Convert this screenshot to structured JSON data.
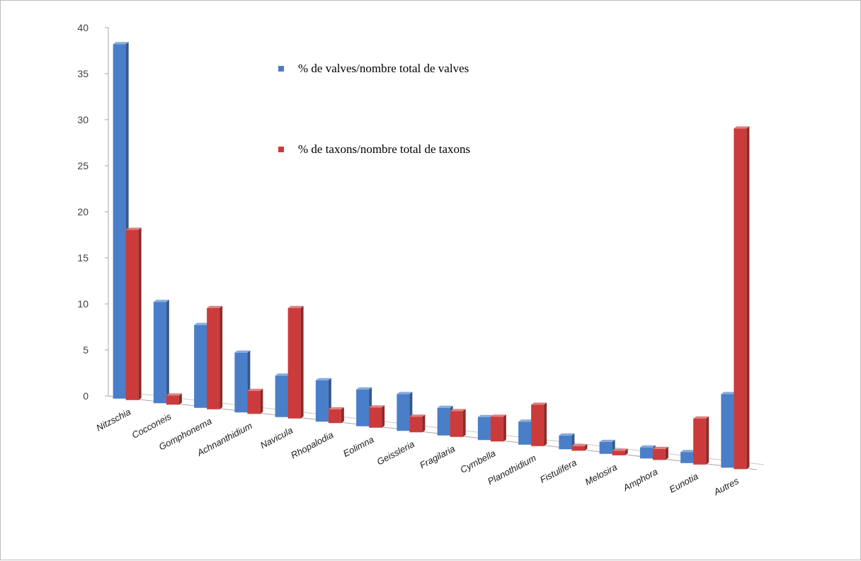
{
  "chart_data": {
    "type": "bar",
    "title": "",
    "xlabel": "",
    "ylabel": "",
    "ylim": [
      0,
      40
    ],
    "yticks": [
      0,
      5,
      10,
      15,
      20,
      25,
      30,
      35,
      40
    ],
    "grid": false,
    "legend_position": "top-center",
    "categories": [
      "Nitzschia",
      "Cocconeis",
      "Gomphonema",
      "Achnanthidium",
      "Navicula",
      "Rhopalodia",
      "Eolimna",
      "Geissleria",
      "Fragilaria",
      "Cymbella",
      "Planothidium",
      "Fistulifera",
      "Melosira",
      "Amphora",
      "Eunotia",
      "Autres"
    ],
    "series": [
      {
        "name": "% de valves/nombre total de valves",
        "color": "#4a7ec8",
        "values": [
          38.5,
          11,
          9,
          6.5,
          4.5,
          4.5,
          4,
          4,
          3,
          2.5,
          2.5,
          1.5,
          1.3,
          1.2,
          1.2,
          8
        ]
      },
      {
        "name": "% de taxons/nombre total de taxons",
        "color": "#cc3b3b",
        "values": [
          18.5,
          1,
          11,
          2.5,
          12,
          1.5,
          2.2,
          1.7,
          2.8,
          2.7,
          4.5,
          0.5,
          0.5,
          1.2,
          5,
          37
        ]
      }
    ]
  }
}
